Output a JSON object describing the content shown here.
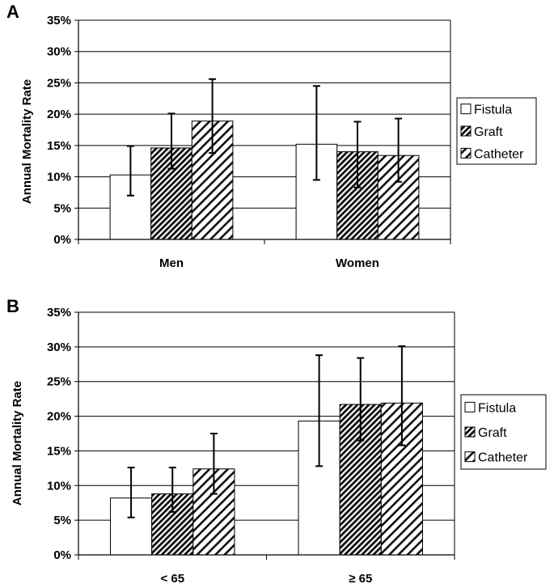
{
  "chart_data": [
    {
      "type": "bar",
      "panel": "A",
      "categories": [
        "Men",
        "Women"
      ],
      "series": [
        {
          "name": "Fistula",
          "values": [
            10.3,
            15.2
          ],
          "err_low": [
            7.0,
            9.5
          ],
          "err_high": [
            14.9,
            24.5
          ],
          "pattern": "none"
        },
        {
          "name": "Graft",
          "values": [
            14.6,
            14.0
          ],
          "err_low": [
            11.3,
            8.3
          ],
          "err_high": [
            20.1,
            18.8
          ],
          "pattern": "dense-diagonal"
        },
        {
          "name": "Catheter",
          "values": [
            18.9,
            13.4
          ],
          "err_low": [
            13.8,
            9.2
          ],
          "err_high": [
            25.6,
            19.3
          ],
          "pattern": "wide-diagonal"
        }
      ],
      "ylabel": "Annual Mortality Rate",
      "xlabel": "",
      "ylim": [
        0,
        35
      ],
      "yticks": [
        "0%",
        "5%",
        "10%",
        "15%",
        "20%",
        "25%",
        "30%",
        "35%"
      ],
      "grid": true,
      "legend_position": "right"
    },
    {
      "type": "bar",
      "panel": "B",
      "categories": [
        "< 65",
        "≥ 65"
      ],
      "series": [
        {
          "name": "Fistula",
          "values": [
            8.2,
            19.3
          ],
          "err_low": [
            5.4,
            12.8
          ],
          "err_high": [
            12.6,
            28.8
          ],
          "pattern": "none"
        },
        {
          "name": "Graft",
          "values": [
            8.8,
            21.7
          ],
          "err_low": [
            6.2,
            16.5
          ],
          "err_high": [
            12.6,
            28.4
          ],
          "pattern": "dense-diagonal"
        },
        {
          "name": "Catheter",
          "values": [
            12.4,
            21.9
          ],
          "err_low": [
            8.8,
            15.8
          ],
          "err_high": [
            17.5,
            30.1
          ],
          "pattern": "wide-diagonal"
        }
      ],
      "ylabel": "Annual Mortality Rate",
      "xlabel": "",
      "ylim": [
        0,
        35
      ],
      "yticks": [
        "0%",
        "5%",
        "10%",
        "15%",
        "20%",
        "25%",
        "30%",
        "35%"
      ],
      "grid": true,
      "legend_position": "right"
    }
  ]
}
